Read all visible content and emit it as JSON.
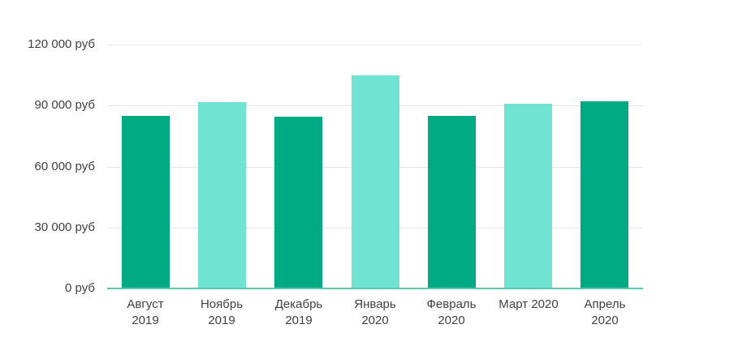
{
  "chart_data": {
    "type": "bar",
    "title": "",
    "xlabel": "",
    "ylabel": "",
    "categories": [
      "Август 2019",
      "Ноябрь 2019",
      "Декабрь 2019",
      "Январь 2020",
      "Февраль 2020",
      "Март 2020",
      "Апрель 2020"
    ],
    "category_label_lines": [
      [
        "Август",
        "2019"
      ],
      [
        "Ноябрь",
        "2019"
      ],
      [
        "Декабрь",
        "2019"
      ],
      [
        "Январь",
        "2020"
      ],
      [
        "Февраль",
        "2020"
      ],
      [
        "Март 2020"
      ],
      [
        "Апрель",
        "2020"
      ]
    ],
    "values": [
      85000,
      91500,
      84500,
      105000,
      85000,
      91000,
      92000
    ],
    "bar_color_pattern": [
      "dark",
      "light",
      "dark",
      "light",
      "dark",
      "light",
      "dark"
    ],
    "ylim": [
      0,
      120000
    ],
    "y_ticks": [
      {
        "value": 0,
        "label": "0 руб"
      },
      {
        "value": 30000,
        "label": "30 000 руб"
      },
      {
        "value": 60000,
        "label": "60 000 руб"
      },
      {
        "value": 90000,
        "label": "90 000 руб"
      },
      {
        "value": 120000,
        "label": "120 000 руб"
      }
    ],
    "grid": true,
    "legend": false,
    "unit": "руб"
  },
  "colors": {
    "bar_dark": "#00ab84",
    "bar_light": "#6fe4d3",
    "gridline": "#e6e6e6",
    "axis_line": "#59c8af",
    "label_text": "#3f3f3f",
    "background": "#ffffff"
  }
}
